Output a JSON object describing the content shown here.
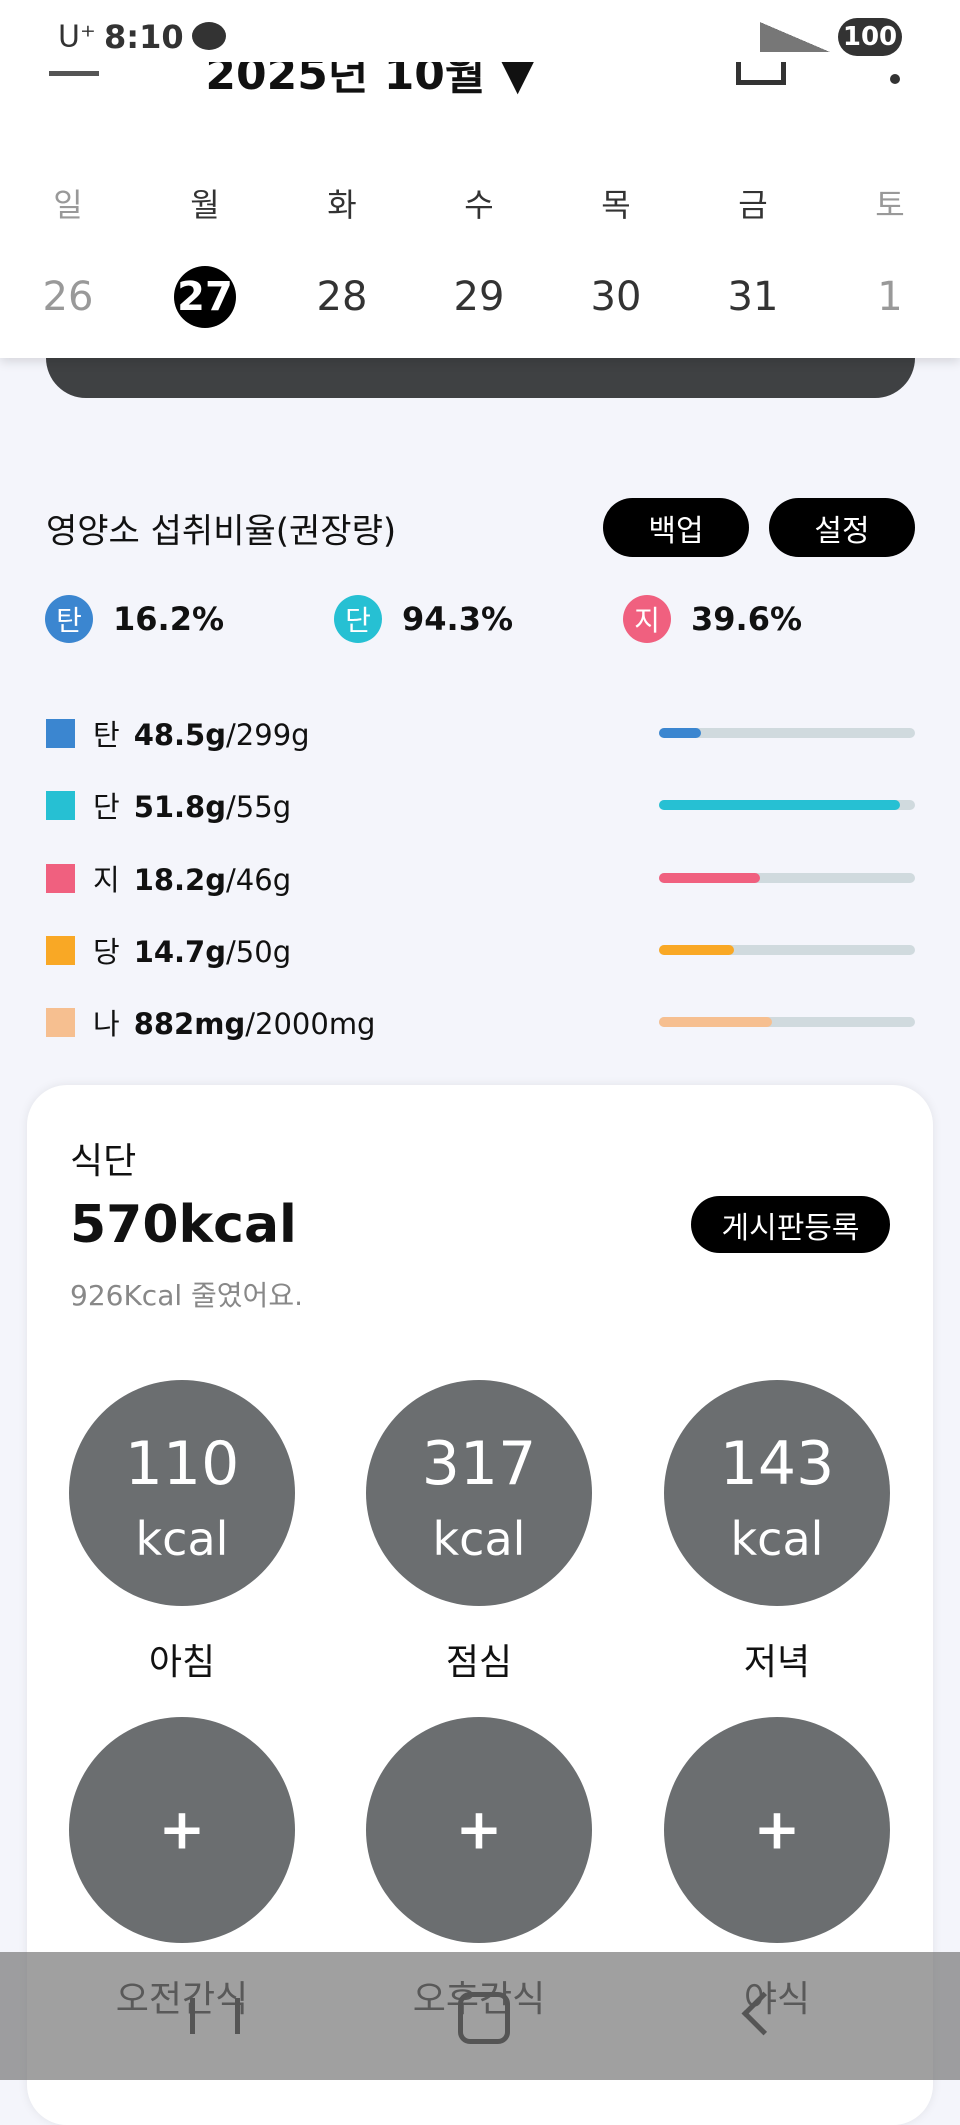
{
  "status_bar": {
    "carrier": "U⁺",
    "time": "8:10",
    "battery": "100"
  },
  "header": {
    "title": "2025년 10월 ▼"
  },
  "week": {
    "days": [
      "일",
      "월",
      "화",
      "수",
      "목",
      "금",
      "토"
    ],
    "dates": [
      "26",
      "27",
      "28",
      "29",
      "30",
      "31",
      "1"
    ],
    "selected": 1
  },
  "nutrients": {
    "title": "영양소 섭취비율(권장량)",
    "buttons": [
      "백업",
      "설정"
    ],
    "ratios": [
      {
        "label": "탄",
        "value": "16.2%",
        "color": "#3b86d0"
      },
      {
        "label": "단",
        "value": "94.3%",
        "color": "#26c0d3"
      },
      {
        "label": "지",
        "value": "39.6%",
        "color": "#f0607f"
      }
    ],
    "separator": "/",
    "items": [
      {
        "name": "탄",
        "intake": 48.5,
        "goal": 299,
        "unit": "g",
        "color": "#3b86d0"
      },
      {
        "name": "단",
        "intake": 51.8,
        "goal": 55,
        "unit": "g",
        "color": "#26c0d3"
      },
      {
        "name": "지",
        "intake": 18.2,
        "goal": 46,
        "unit": "g",
        "color": "#f0607f"
      },
      {
        "name": "당",
        "intake": 14.7,
        "goal": 50,
        "unit": "g",
        "color": "#f9a825"
      },
      {
        "name": "나",
        "intake": 882,
        "goal": 2000,
        "unit": "mg",
        "color": "#f6bf90"
      }
    ]
  },
  "meals": {
    "title": "식단",
    "total": "570kcal",
    "note": "926Kcal 줄였어요.",
    "button": "게시판등록",
    "unit": "kcal",
    "entries": [
      {
        "name": "아침",
        "kcal": 110
      },
      {
        "name": "점심",
        "kcal": 317
      },
      {
        "name": "저녁",
        "kcal": 143
      }
    ],
    "add_symbol": "+",
    "empty": [
      "오전간식",
      "오후간식",
      "야식"
    ]
  }
}
